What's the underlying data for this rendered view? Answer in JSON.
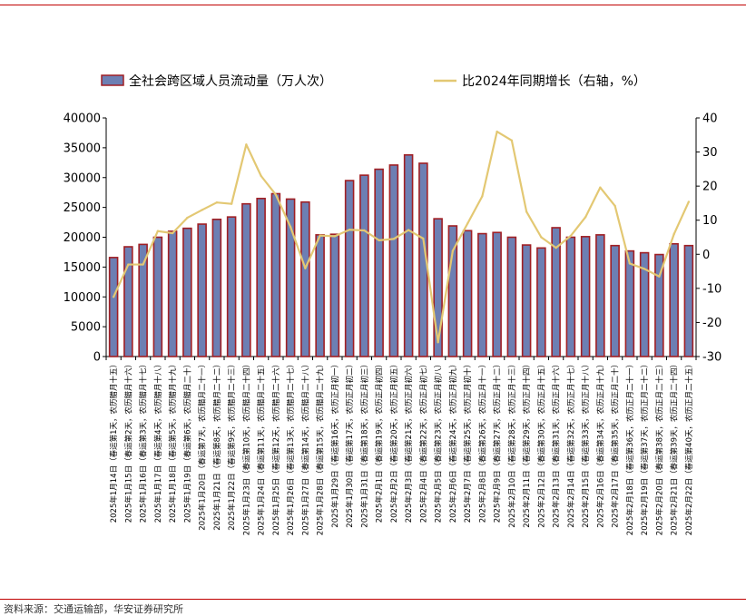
{
  "source": "资料来源：交通运输部，华安证券研究所",
  "chart_data": {
    "type": "bar",
    "categories": [
      "2025年1月14日（春运第1天，农历腊月十五）",
      "2025年1月15日（春运第2天，农历腊月十六）",
      "2025年1月16日（春运第3天，农历腊月十七）",
      "2025年1月17日（春运第4天，农历腊月十八）",
      "2025年1月18日（春运第5天，农历腊月十九）",
      "2025年1月19日（春运第6天，农历腊月二十）",
      "2025年1月20日（春运第7天，农历腊月二十一）",
      "2025年1月21日（春运第8天，农历腊月二十二）",
      "2025年1月22日（春运第9天，农历腊月二十三）",
      "2025年1月23日（春运第10天，农历腊月二十四）",
      "2025年1月24日（春运第11天，农历腊月二十五）",
      "2025年1月25日（春运第12天，农历腊月二十六）",
      "2025年1月26日（春运第13天，农历腊月二十七）",
      "2025年1月27日（春运第14天，农历腊月二十八）",
      "2025年1月28日（春运第15天，农历腊月二十九）",
      "2025年1月29日（春运第16天，农历正月初一）",
      "2025年1月30日（春运第17天，农历正月初二）",
      "2025年1月31日（春运第18天，农历正月初三）",
      "2025年2月1日（春运第19天，农历正月初四）",
      "2025年2月2日（春运第20天，农历正月初五）",
      "2025年2月3日（春运第21天，农历正月初六）",
      "2025年2月4日（春运第22天，农历正月初七）",
      "2025年2月5日（春运第23天，农历正月初八）",
      "2025年2月6日（春运第24天，农历正月初九）",
      "2025年2月7日（春运第25天，农历正月初十）",
      "2025年2月8日（春运第26天，农历正月十一）",
      "2025年2月9日（春运第27天，农历正月十二）",
      "2025年2月10日（春运第28天，农历正月十三）",
      "2025年2月11日（春运第29天，农历正月十四）",
      "2025年2月12日（春运第30天，农历正月十五）",
      "2025年2月13日（春运第31天，农历正月十六）",
      "2025年2月14日（春运第32天，农历正月十七）",
      "2025年2月15日（春运第33天，农历正月十八）",
      "2025年2月16日（春运第34天，农历正月十九）",
      "2025年2月17日（春运第35天，农历正月二十）",
      "2025年2月18日（春运第36天，农历正月二十一）",
      "2025年2月19日（春运第37天，农历正月二十二）",
      "2025年2月20日（春运第38天，农历正月二十三）",
      "2025年2月21日（春运第39天，农历正月二十四）",
      "2025年2月22日（春运第40天，农历正月二十五）"
    ],
    "series": [
      {
        "name": "全社会跨区域人员流动量（万人次）",
        "kind": "bar",
        "axis": "left",
        "color": "#6d7fb3",
        "edge_color": "#a01f24",
        "values": [
          16600,
          18400,
          18800,
          20000,
          21000,
          21500,
          22200,
          23000,
          23400,
          25600,
          26500,
          27300,
          26400,
          25900,
          20400,
          20500,
          29500,
          30400,
          31400,
          32100,
          33800,
          32400,
          23100,
          21900,
          21100,
          20600,
          20800,
          20000,
          18700,
          18200,
          21600,
          20000,
          20100,
          20400,
          18600,
          17700,
          17400,
          17100,
          18900,
          18600
        ]
      },
      {
        "name": "比2024年同期增长（右轴，%）",
        "kind": "line",
        "axis": "right",
        "color": "#e3c873",
        "values": [
          -12.5,
          -3,
          -3,
          6.8,
          6.2,
          10.7,
          13,
          15.2,
          14.8,
          32.2,
          23,
          17.5,
          8,
          -4.1,
          5.5,
          5.3,
          7.2,
          7,
          4.1,
          4.5,
          7.1,
          4.6,
          -25.8,
          1,
          9,
          17,
          36,
          33.4,
          12.5,
          5,
          1.9,
          5.4,
          10.9,
          19.6,
          14.2,
          -2.7,
          -4.3,
          -6.5,
          5.9,
          15.4
        ]
      }
    ],
    "y_left": {
      "min": 0,
      "max": 40000,
      "ticks": [
        0,
        5000,
        10000,
        15000,
        20000,
        25000,
        30000,
        35000,
        40000
      ]
    },
    "y_right": {
      "min": -30,
      "max": 40,
      "ticks": [
        -30,
        -20,
        -10,
        0,
        10,
        20,
        30,
        40
      ]
    },
    "legend_position": "top",
    "grid": false
  }
}
